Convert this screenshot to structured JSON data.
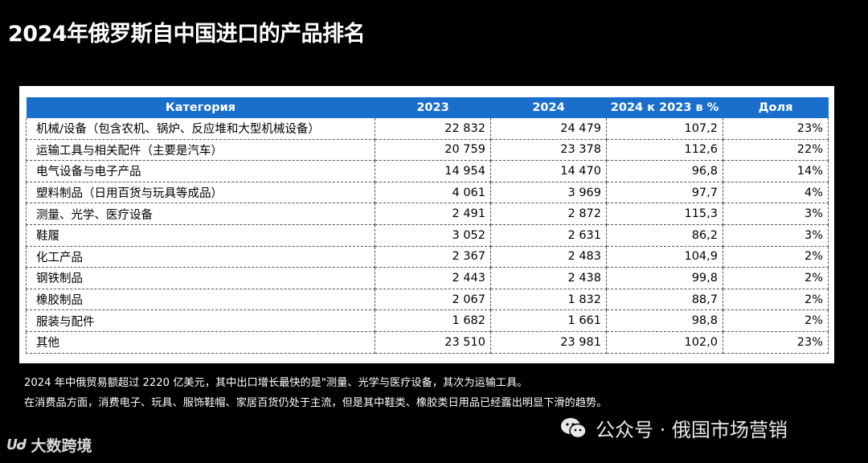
{
  "title": "2024年俄罗斯自中国进口的产品排名",
  "table": {
    "headers": [
      "Категория",
      "2023",
      "2024",
      "2024 к 2023 в %",
      "Доля"
    ],
    "rows": [
      [
        "机械/设备（包含农机、锅炉、反应堆和大型机械设备）",
        "22 832",
        "24 479",
        "107,2",
        "23%"
      ],
      [
        "运输工具与相关配件（主要是汽车）",
        "20 759",
        "23 378",
        "112,6",
        "22%"
      ],
      [
        "电气设备与电子产品",
        "14 954",
        "14 470",
        "96,8",
        "14%"
      ],
      [
        "塑料制品（日用百货与玩具等成品）",
        "4 061",
        "3 969",
        "97,7",
        "4%"
      ],
      [
        "测量、光学、医疗设备",
        "2 491",
        "2 872",
        "115,3",
        "3%"
      ],
      [
        "鞋履",
        "3 052",
        "2 631",
        "86,2",
        "3%"
      ],
      [
        "化工产品",
        "2 367",
        "2 483",
        "104,9",
        "2%"
      ],
      [
        "钢铁制品",
        "2 443",
        "2 438",
        "99,8",
        "2%"
      ],
      [
        "橡胶制品",
        "2 067",
        "1 832",
        "88,7",
        "2%"
      ],
      [
        "服装与配件",
        "1 682",
        "1 661",
        "98,8",
        "2%"
      ],
      [
        "其他",
        "23 510",
        "23 981",
        "102,0",
        "23%"
      ]
    ]
  },
  "footnotes": [
    "2024 年中俄贸易额超过 2220 亿美元，其中出口增长最快的是\"测量、光学与医疗设备，其次为运输工具。",
    "在消费品方面，消费电子、玩具、服饰鞋帽、家居百货仍处于主流，但是其中鞋类、橡胶类日用品已经露出明显下滑的趋势。"
  ],
  "watermark": {
    "icon": "wechat-icon",
    "text": "公众号 · 俄国市场营销"
  },
  "logo": {
    "mark": "ᑌᑯ",
    "text": "大数跨境"
  },
  "colors": {
    "background": "#000000",
    "header": "#1a6fcc"
  }
}
